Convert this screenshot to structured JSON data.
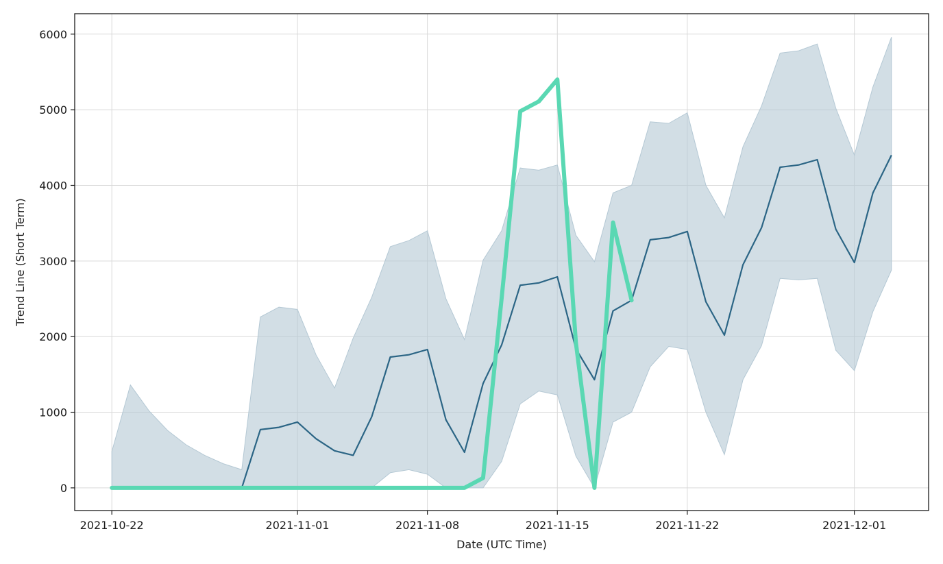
{
  "chart_data": {
    "type": "line",
    "title": "",
    "xlabel": "Date (UTC Time)",
    "ylabel": "Trend Line (Short Term)",
    "x_start": "2021-10-22",
    "x_end": "2021-12-03",
    "xlim": [
      "2021-10-20",
      "2021-12-05"
    ],
    "ylim": [
      -300,
      6270
    ],
    "grid": true,
    "x_ticks": [
      "2021-10-22",
      "2021-11-01",
      "2021-11-08",
      "2021-11-15",
      "2021-11-22",
      "2021-12-01"
    ],
    "y_ticks": [
      0,
      1000,
      2000,
      3000,
      4000,
      5000,
      6000
    ],
    "colors": {
      "trend": "#2b6585",
      "band": "#b4c8d4",
      "actual": "#5ad8b3"
    },
    "series": [
      {
        "kind": "trend",
        "x": [
          "2021-10-22",
          "2021-10-23",
          "2021-10-24",
          "2021-10-25",
          "2021-10-26",
          "2021-10-27",
          "2021-10-28",
          "2021-10-29",
          "2021-10-30",
          "2021-10-31",
          "2021-11-01",
          "2021-11-02",
          "2021-11-03",
          "2021-11-04",
          "2021-11-05",
          "2021-11-06",
          "2021-11-07",
          "2021-11-08",
          "2021-11-09",
          "2021-11-10",
          "2021-11-11",
          "2021-11-12",
          "2021-11-13",
          "2021-11-14",
          "2021-11-15",
          "2021-11-16",
          "2021-11-17",
          "2021-11-18",
          "2021-11-19",
          "2021-11-20",
          "2021-11-21",
          "2021-11-22",
          "2021-11-23",
          "2021-11-24",
          "2021-11-25",
          "2021-11-26",
          "2021-11-27",
          "2021-11-28",
          "2021-11-29",
          "2021-11-30",
          "2021-12-01",
          "2021-12-02",
          "2021-12-03"
        ],
        "values": [
          0,
          0,
          0,
          0,
          0,
          0,
          0,
          0,
          770,
          800,
          870,
          650,
          490,
          430,
          940,
          1730,
          1760,
          1830,
          900,
          470,
          1380,
          1890,
          2680,
          2710,
          2790,
          1840,
          1430,
          2340,
          2480,
          3280,
          3310,
          3390,
          2460,
          2020,
          2950,
          3440,
          4240,
          4270,
          4340,
          3420,
          2980,
          3900,
          4400
        ]
      },
      {
        "kind": "band",
        "x": [
          "2021-10-22",
          "2021-10-23",
          "2021-10-24",
          "2021-10-25",
          "2021-10-26",
          "2021-10-27",
          "2021-10-28",
          "2021-10-29",
          "2021-10-30",
          "2021-10-31",
          "2021-11-01",
          "2021-11-02",
          "2021-11-03",
          "2021-11-04",
          "2021-11-05",
          "2021-11-06",
          "2021-11-07",
          "2021-11-08",
          "2021-11-09",
          "2021-11-10",
          "2021-11-11",
          "2021-11-12",
          "2021-11-13",
          "2021-11-14",
          "2021-11-15",
          "2021-11-16",
          "2021-11-17",
          "2021-11-18",
          "2021-11-19",
          "2021-11-20",
          "2021-11-21",
          "2021-11-22",
          "2021-11-23",
          "2021-11-24",
          "2021-11-25",
          "2021-11-26",
          "2021-11-27",
          "2021-11-28",
          "2021-11-29",
          "2021-11-30",
          "2021-12-01",
          "2021-12-02",
          "2021-12-03"
        ],
        "upper": [
          480,
          1360,
          1020,
          760,
          570,
          430,
          320,
          240,
          2260,
          2390,
          2360,
          1760,
          1320,
          1980,
          2520,
          3190,
          3270,
          3400,
          2500,
          1960,
          3010,
          3400,
          4230,
          4200,
          4270,
          3340,
          2990,
          3900,
          4000,
          4840,
          4820,
          4960,
          4000,
          3570,
          4510,
          5050,
          5750,
          5780,
          5870,
          5020,
          4400,
          5300,
          5960
        ],
        "lower": [
          0,
          0,
          0,
          0,
          0,
          0,
          0,
          0,
          0,
          0,
          0,
          0,
          0,
          0,
          0,
          200,
          240,
          180,
          0,
          0,
          0,
          350,
          1110,
          1280,
          1230,
          420,
          0,
          870,
          1000,
          1600,
          1870,
          1830,
          1000,
          440,
          1430,
          1880,
          2770,
          2750,
          2770,
          1820,
          1550,
          2330,
          2880
        ]
      },
      {
        "kind": "actual",
        "x": [
          "2021-10-22",
          "2021-10-23",
          "2021-10-24",
          "2021-10-25",
          "2021-10-26",
          "2021-10-27",
          "2021-10-28",
          "2021-10-29",
          "2021-10-30",
          "2021-10-31",
          "2021-11-01",
          "2021-11-02",
          "2021-11-03",
          "2021-11-04",
          "2021-11-05",
          "2021-11-06",
          "2021-11-07",
          "2021-11-08",
          "2021-11-09",
          "2021-11-10",
          "2021-11-11",
          "2021-11-12",
          "2021-11-13",
          "2021-11-14",
          "2021-11-15",
          "2021-11-16",
          "2021-11-17",
          "2021-11-18",
          "2021-11-19"
        ],
        "values": [
          0,
          0,
          0,
          0,
          0,
          0,
          0,
          0,
          0,
          0,
          0,
          0,
          0,
          0,
          0,
          0,
          0,
          0,
          0,
          0,
          130,
          2510,
          4980,
          5110,
          5400,
          1920,
          0,
          3510,
          2480
        ]
      }
    ]
  }
}
